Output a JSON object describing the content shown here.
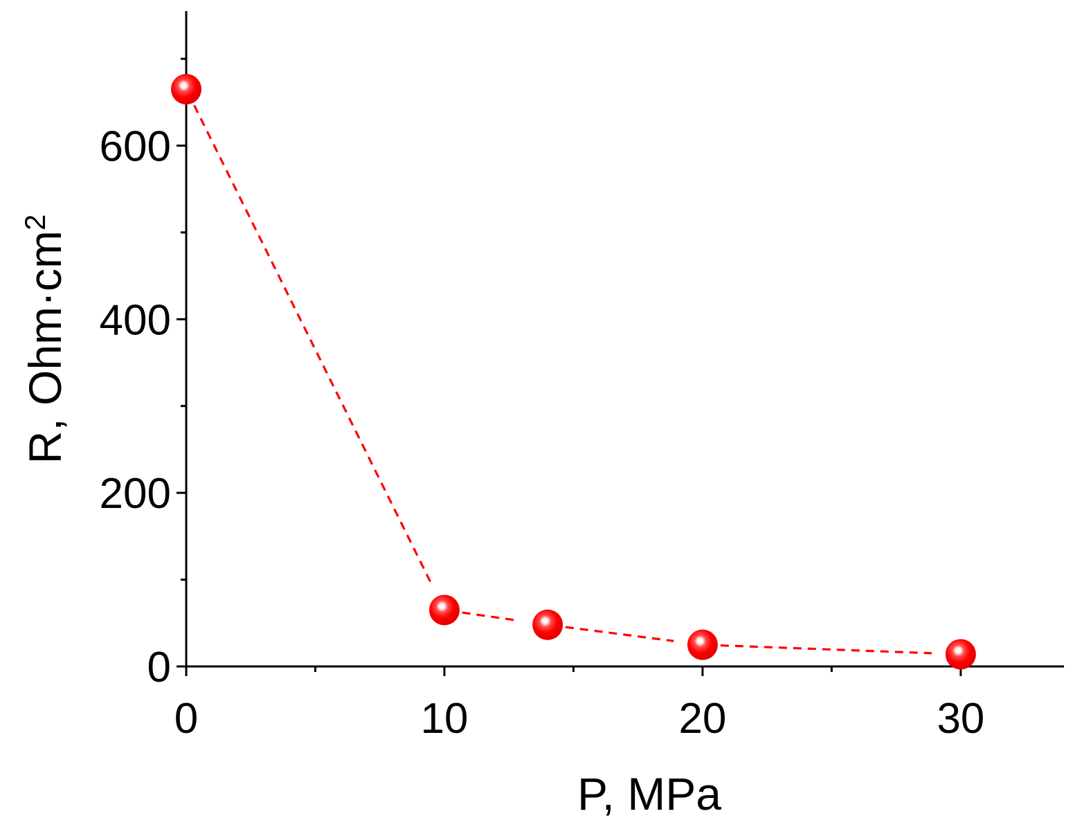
{
  "chart_data": {
    "type": "scatter",
    "title": "",
    "xlabel": "P, MPa",
    "ylabel_main": "R, Ohm·cm",
    "ylabel_superscript": "2",
    "xlim": [
      0,
      34
    ],
    "ylim": [
      0,
      755
    ],
    "x_ticks": [
      0,
      10,
      20,
      30
    ],
    "x_tick_labels": [
      "0",
      "10",
      "20",
      "30"
    ],
    "x_minor_ticks": [
      5,
      15,
      25
    ],
    "y_ticks": [
      0,
      200,
      400,
      600
    ],
    "y_tick_labels": [
      "0",
      "200",
      "400",
      "600"
    ],
    "y_minor_ticks": [
      100,
      300,
      500,
      700
    ],
    "grid": false,
    "legend": "none",
    "series": [
      {
        "line_style": "dashed",
        "color": "#ff0000",
        "marker": "sphere",
        "x": [
          0,
          10,
          14,
          20,
          30
        ],
        "y": [
          665,
          65,
          48,
          25,
          14
        ]
      }
    ]
  }
}
